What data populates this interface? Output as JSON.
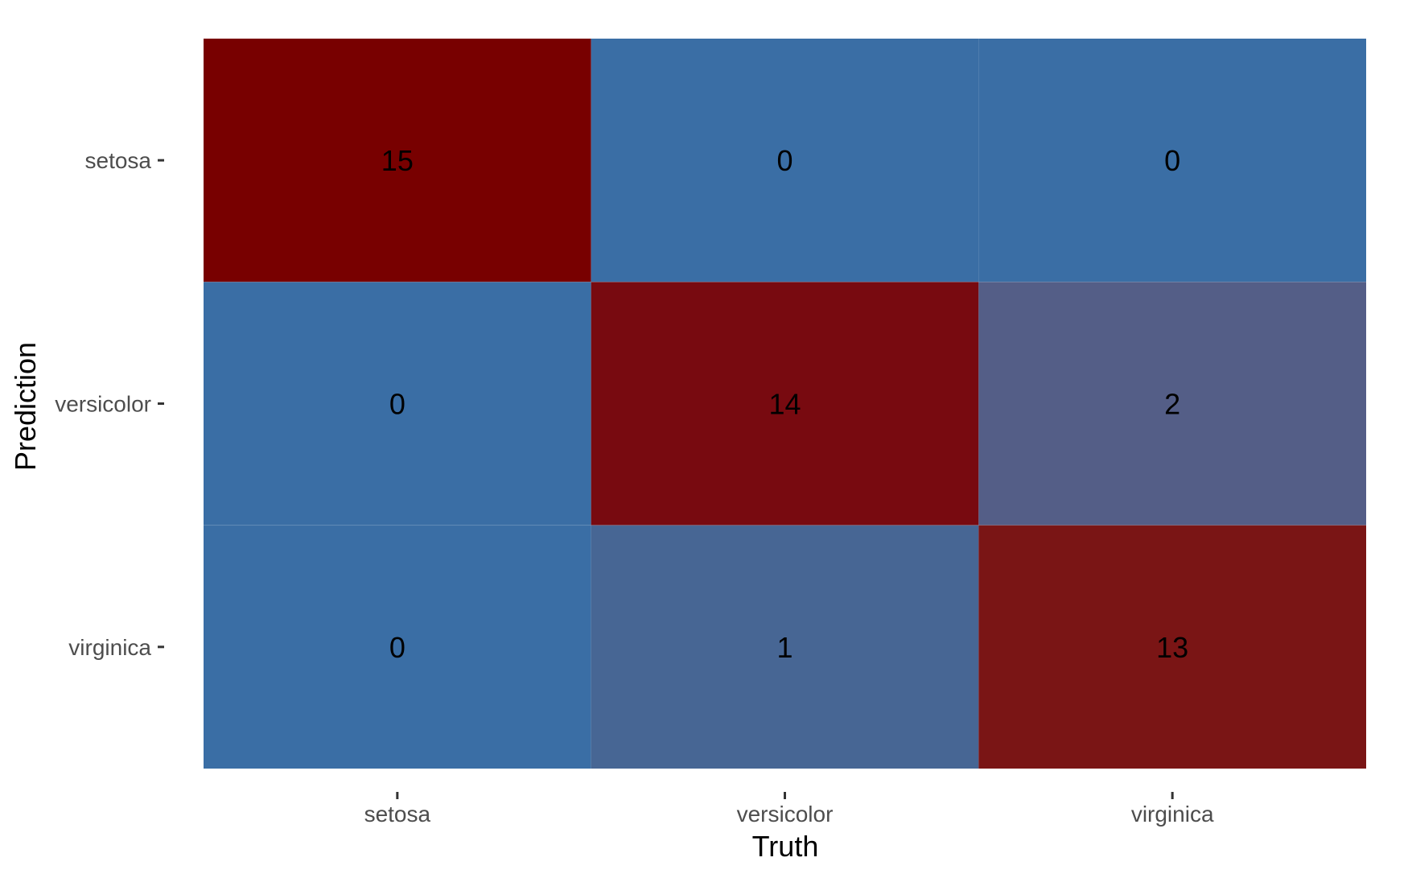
{
  "chart_data": {
    "type": "heatmap",
    "x_categories": [
      "setosa",
      "versicolor",
      "virginica"
    ],
    "y_categories": [
      "setosa",
      "versicolor",
      "virginica"
    ],
    "xlabel": "Truth",
    "ylabel": "Prediction",
    "values": [
      [
        15,
        0,
        0
      ],
      [
        0,
        14,
        2
      ],
      [
        0,
        1,
        13
      ]
    ],
    "color_low": "#3a6ea5",
    "color_high": "#7a0000",
    "cell_colors": [
      [
        "#780000",
        "#3a6ea5",
        "#3a6ea5"
      ],
      [
        "#3a6ea5",
        "#780a10",
        "#545e87"
      ],
      [
        "#3a6ea5",
        "#476694",
        "#7a1515"
      ]
    ],
    "legend": false,
    "grid": false
  }
}
